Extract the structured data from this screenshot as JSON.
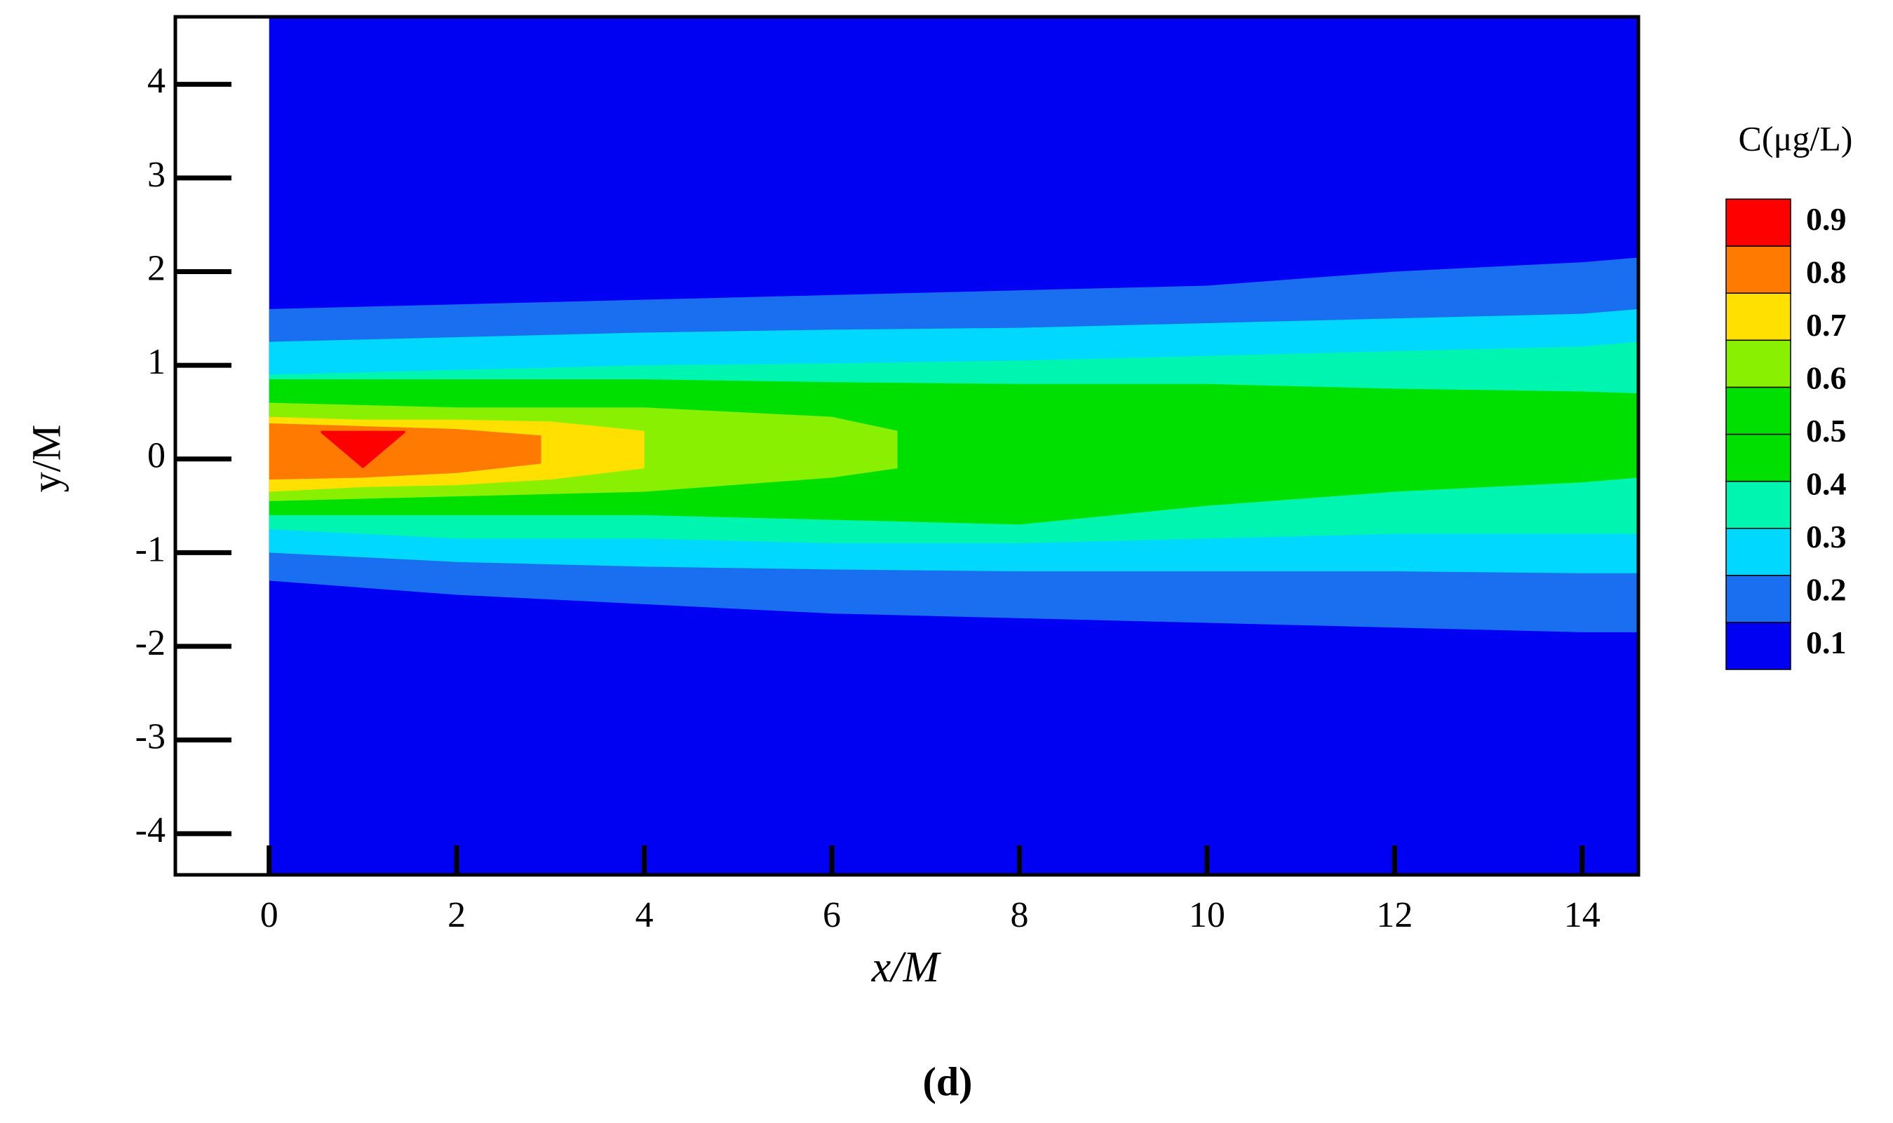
{
  "chart_data": {
    "type": "contour",
    "xlabel": "x/M",
    "ylabel": "y/M",
    "caption": "(d)",
    "xlim": [
      -1,
      14.6
    ],
    "ylim": [
      -4.44,
      4.72
    ],
    "xticks": [
      0,
      2,
      4,
      6,
      8,
      10,
      12,
      14
    ],
    "yticks": [
      -4,
      -3,
      -2,
      -1,
      0,
      1,
      2,
      3,
      4
    ],
    "background_color": "#0000f2",
    "contours": [
      {
        "level": 0.1,
        "color": "#1a6ef0",
        "x": [
          0,
          2,
          4,
          6,
          8,
          10,
          12,
          14,
          14.6
        ],
        "upper": [
          1.6,
          1.65,
          1.7,
          1.75,
          1.8,
          1.85,
          2.0,
          2.1,
          2.15
        ],
        "lower": [
          -1.3,
          -1.45,
          -1.55,
          -1.65,
          -1.7,
          -1.75,
          -1.8,
          -1.85,
          -1.85
        ]
      },
      {
        "level": 0.2,
        "color": "#00d8ff",
        "x": [
          0,
          2,
          4,
          6,
          8,
          10,
          12,
          14,
          14.6
        ],
        "upper": [
          1.25,
          1.3,
          1.35,
          1.38,
          1.4,
          1.45,
          1.5,
          1.55,
          1.6
        ],
        "lower": [
          -1.0,
          -1.1,
          -1.15,
          -1.18,
          -1.2,
          -1.2,
          -1.2,
          -1.22,
          -1.22
        ]
      },
      {
        "level": 0.3,
        "color": "#00f5b0",
        "x": [
          0,
          2,
          4,
          6,
          8,
          10,
          12,
          14,
          14.6
        ],
        "upper": [
          0.9,
          0.95,
          1.0,
          1.02,
          1.05,
          1.1,
          1.15,
          1.2,
          1.25
        ],
        "lower": [
          -0.75,
          -0.85,
          -0.85,
          -0.9,
          -0.9,
          -0.85,
          -0.8,
          -0.8,
          -0.8
        ]
      },
      {
        "level": 0.4,
        "color": "#00e000",
        "x": [
          0,
          2,
          4,
          6,
          8,
          10,
          12,
          14,
          14.6
        ],
        "upper": [
          0.85,
          0.85,
          0.85,
          0.82,
          0.8,
          0.8,
          0.75,
          0.72,
          0.7
        ],
        "lower": [
          -0.6,
          -0.6,
          -0.6,
          -0.65,
          -0.7,
          -0.5,
          -0.35,
          -0.25,
          -0.2
        ]
      },
      {
        "level": 0.6,
        "color": "#88f000",
        "x": [
          0,
          2,
          4,
          6,
          6.7
        ],
        "upper": [
          0.6,
          0.55,
          0.55,
          0.45,
          0.3
        ],
        "lower": [
          -0.45,
          -0.4,
          -0.35,
          -0.2,
          -0.1
        ]
      },
      {
        "level": 0.7,
        "color": "#ffe000",
        "x": [
          0,
          1,
          2,
          3,
          4
        ],
        "upper": [
          0.45,
          0.42,
          0.42,
          0.4,
          0.3
        ],
        "lower": [
          -0.35,
          -0.3,
          -0.28,
          -0.22,
          -0.1
        ]
      },
      {
        "level": 0.8,
        "color": "#ff7a00",
        "x": [
          0,
          1,
          2,
          2.9
        ],
        "upper": [
          0.38,
          0.35,
          0.32,
          0.25
        ],
        "lower": [
          -0.22,
          -0.2,
          -0.15,
          -0.05
        ]
      },
      {
        "level": 0.9,
        "color": "#ff0000",
        "x": [
          0.55,
          1.0,
          1.45
        ],
        "upper": [
          0.3,
          0.3,
          0.3
        ],
        "lower": [
          0.28,
          -0.1,
          0.28
        ]
      }
    ],
    "colorbar": {
      "title": "C(μg/L)",
      "ticks": [
        0.1,
        0.2,
        0.3,
        0.4,
        0.5,
        0.6,
        0.7,
        0.8,
        0.9
      ],
      "colors": [
        "#0000f2",
        "#1a6ef0",
        "#00d8ff",
        "#00f5b0",
        "#00e000",
        "#00e000",
        "#88f000",
        "#ffe000",
        "#ff7a00",
        "#ff0000"
      ]
    }
  }
}
